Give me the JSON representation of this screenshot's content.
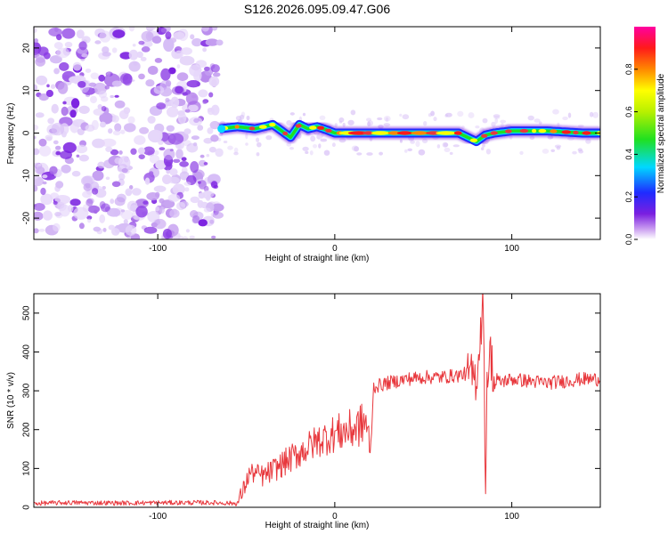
{
  "title": "S126.2026.095.09.47.G06",
  "chart_data": [
    {
      "type": "heatmap",
      "xlabel": "Height of straight line (km)",
      "ylabel": "Frequency (Hz)",
      "xlim": [
        -170,
        150
      ],
      "ylim": [
        -25,
        25
      ],
      "xticks": [
        -100,
        0,
        100
      ],
      "yticks": [
        -20,
        -10,
        0,
        10,
        20
      ],
      "xtick_labels": [
        "-100",
        "0",
        "100"
      ],
      "ytick_labels": [
        "-20",
        "-10",
        "0",
        "10",
        "20"
      ],
      "noise_region_x": [
        -170,
        -65
      ],
      "ridge": {
        "x": [
          -65,
          -55,
          -45,
          -35,
          -30,
          -25,
          -20,
          -15,
          -10,
          -5,
          0,
          10,
          20,
          40,
          60,
          70,
          75,
          80,
          85,
          90,
          100,
          120,
          140,
          150
        ],
        "y": [
          1,
          1.5,
          1,
          2,
          0.5,
          -1,
          2,
          1,
          1.5,
          0.8,
          0,
          0,
          0,
          0,
          0,
          0,
          -1,
          -2,
          -0.5,
          0,
          0.5,
          0.5,
          0,
          0
        ]
      },
      "colorbar": {
        "label": "Normalized spectral amplitude",
        "range": [
          0,
          1
        ],
        "ticks": [
          0.0,
          0.2,
          0.4,
          0.6,
          0.8
        ],
        "tick_labels": [
          "0.0",
          "0.2",
          "0.4",
          "0.6",
          "0.8"
        ],
        "colors": [
          "#ffffff",
          "#7a1fe0",
          "#1f2bff",
          "#00d8ff",
          "#20e020",
          "#ffff00",
          "#ff8800",
          "#ff0000",
          "#ff00a0"
        ]
      }
    },
    {
      "type": "line",
      "xlabel": "Height of straight line (km)",
      "ylabel": "SNR (10 * v/v)",
      "xlim": [
        -170,
        150
      ],
      "ylim": [
        0,
        550
      ],
      "xticks": [
        -100,
        0,
        100
      ],
      "yticks": [
        0,
        100,
        200,
        300,
        400,
        500
      ],
      "xtick_labels": [
        "-100",
        "0",
        "100"
      ],
      "ytick_labels": [
        "0",
        "100",
        "200",
        "300",
        "400",
        "500"
      ],
      "series": [
        {
          "name": "SNR",
          "color": "#e8383d",
          "x": [
            -170,
            -150,
            -120,
            -90,
            -70,
            -55,
            -52,
            -48,
            -40,
            -30,
            -20,
            -10,
            0,
            10,
            18,
            20,
            22,
            30,
            40,
            50,
            60,
            70,
            75,
            80,
            84,
            85,
            86,
            88,
            90,
            100,
            120,
            140,
            150
          ],
          "y": [
            10,
            12,
            11,
            12,
            12,
            10,
            40,
            90,
            80,
            110,
            140,
            170,
            190,
            200,
            220,
            130,
            310,
            320,
            330,
            335,
            335,
            340,
            345,
            330,
            540,
            25,
            330,
            400,
            320,
            330,
            320,
            330,
            330
          ]
        }
      ]
    }
  ]
}
